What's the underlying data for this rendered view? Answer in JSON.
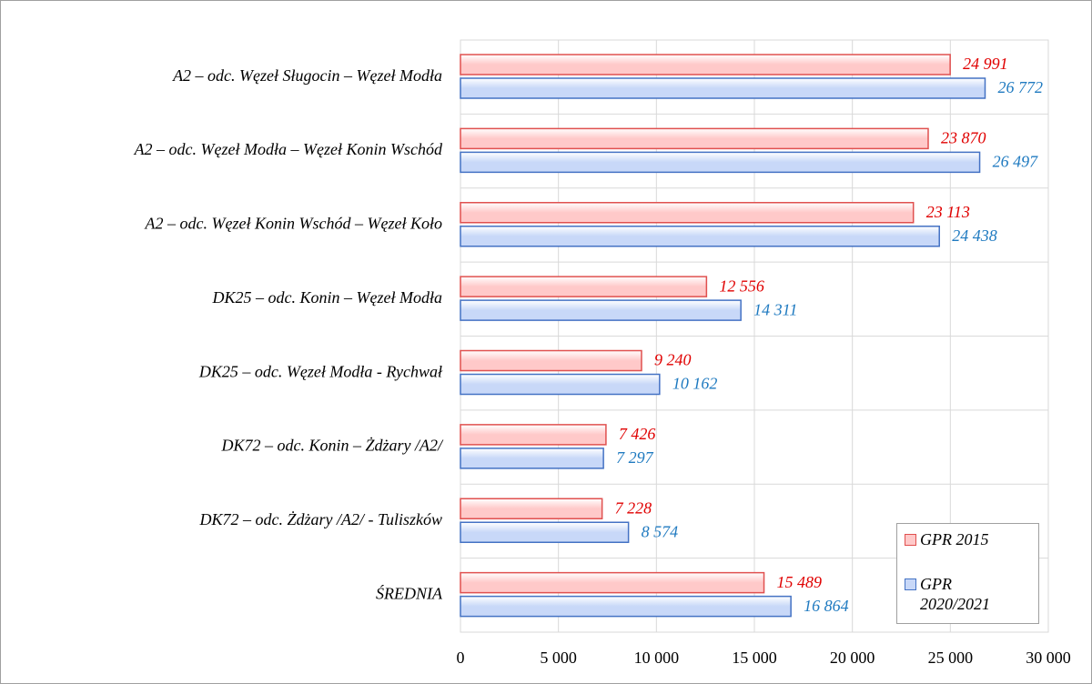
{
  "chart_data": {
    "type": "barh",
    "categories": [
      "A2 – odc. Węzeł Sługocin – Węzeł Modła",
      "A2 – odc. Węzeł Modła – Węzeł Konin Wschód",
      "A2 – odc. Węzeł Konin Wschód – Węzeł Koło",
      "DK25 – odc. Konin – Węzeł Modła",
      "DK25 – odc. Węzeł Modła - Rychwał",
      "DK72 – odc. Konin – Żdżary /A2/",
      "DK72 – odc. Żdżary /A2/ - Tuliszków",
      "ŚREDNIA"
    ],
    "series": [
      {
        "name": "GPR 2015",
        "color": "#ffc9c9",
        "edge": "#e0504f",
        "label_color": "#e00000",
        "values": [
          24991,
          23870,
          23113,
          12556,
          9240,
          7426,
          7228,
          15489
        ],
        "value_labels": [
          "24 991",
          "23 870",
          "23 113",
          "12 556",
          "9 240",
          "7 426",
          "7 228",
          "15 489"
        ]
      },
      {
        "name": "GPR 2020/2021",
        "color": "#c8d8f8",
        "edge": "#4472c4",
        "label_color": "#1f7ac0",
        "values": [
          26772,
          26497,
          24438,
          14311,
          10162,
          7297,
          8574,
          16864
        ],
        "value_labels": [
          "26 772",
          "26 497",
          "24 438",
          "14 311",
          "10 162",
          "7 297",
          "8 574",
          "16 864"
        ]
      }
    ],
    "xlim": [
      0,
      30000
    ],
    "xticks": [
      0,
      {
        "value": 5000,
        "label": "5 000"
      },
      {
        "value": 10000,
        "label": "10 000"
      },
      {
        "value": 15000,
        "label": "15 000"
      },
      {
        "value": 20000,
        "label": "20 000"
      },
      {
        "value": 25000,
        "label": "25 000"
      },
      {
        "value": 30000,
        "label": "30 000"
      }
    ],
    "grid": true,
    "legend": "lower right"
  }
}
